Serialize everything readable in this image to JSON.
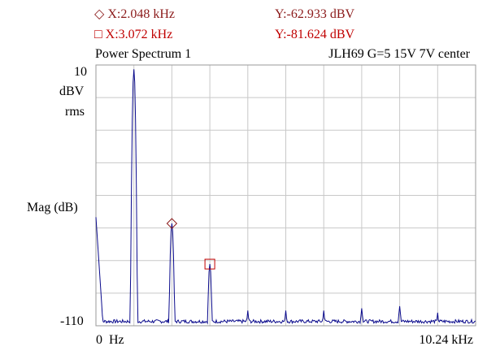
{
  "cursors": {
    "cursor1": {
      "x_label": "X:2.048 kHz",
      "y_label": "Y:-62.933 dBV",
      "symbol": "diamond",
      "color": "#8b1a1a"
    },
    "cursor2": {
      "x_label": "X:3.072 kHz",
      "y_label": "Y:-81.624 dBV",
      "symbol": "square",
      "color": "#c00000"
    }
  },
  "trace_color": "#0a0a8c",
  "grid_color": "#c8c8c8",
  "chart_data": {
    "type": "line",
    "title": "Power Spectrum 1",
    "subtitle": "JLH69 G=5 15V 7V center",
    "ylabel": "Mag (dB)",
    "yunit_line1": "dBV",
    "yunit_line2": "rms",
    "ytick_top": "10",
    "ytick_bottom": "-110",
    "xtick_left": "0  Hz",
    "xtick_right": "10.24 kHz",
    "xlim": [
      0,
      10.24
    ],
    "ylim": [
      -110,
      10
    ],
    "grid": true,
    "series": [
      {
        "peaks_khz": [
          0.0,
          1.024,
          2.048,
          3.072,
          4.096,
          5.12,
          6.144,
          7.168,
          8.192,
          9.216
        ],
        "peaks_dbv": [
          -60,
          8,
          -62.933,
          -81.624,
          -103,
          -103,
          -103,
          -102,
          -101,
          -104
        ],
        "noise_floor_dbv": -108
      }
    ],
    "cursor_points": [
      {
        "x": 2.048,
        "y": -62.933,
        "marker": "diamond"
      },
      {
        "x": 3.072,
        "y": -81.624,
        "marker": "square"
      }
    ]
  }
}
